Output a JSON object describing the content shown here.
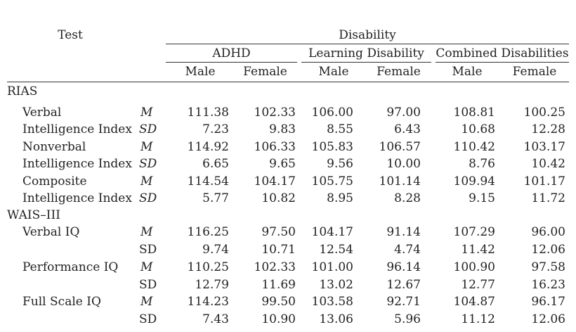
{
  "header": {
    "test_label": "Test",
    "disability_label": "Disability",
    "groups": [
      "ADHD",
      "Learning Disability",
      "Combined Disabilities"
    ],
    "sub": [
      "Male",
      "Female",
      "Male",
      "Female",
      "Male",
      "Female"
    ]
  },
  "sections": [
    {
      "title": "RIAS",
      "rows": [
        {
          "label": "Verbal",
          "stat": "M",
          "values": [
            "111.38",
            "102.33",
            "106.00",
            "97.00",
            "108.81",
            "100.25"
          ]
        },
        {
          "label": "Intelligence Index",
          "stat": "SD",
          "values": [
            "7.23",
            "9.83",
            "8.55",
            "6.43",
            "10.68",
            "12.28"
          ]
        },
        {
          "label": "Nonverbal",
          "stat": "M",
          "values": [
            "114.92",
            "106.33",
            "105.83",
            "106.57",
            "110.42",
            "103.17"
          ]
        },
        {
          "label": "Intelligence Index",
          "stat": "SD",
          "values": [
            "6.65",
            "9.65",
            "9.56",
            "10.00",
            "8.76",
            "10.42"
          ]
        },
        {
          "label": "Composite",
          "stat": "M",
          "values": [
            "114.54",
            "104.17",
            "105.75",
            "101.14",
            "109.94",
            "101.17"
          ]
        },
        {
          "label": "Intelligence Index",
          "stat": "SD",
          "values": [
            "5.77",
            "10.82",
            "8.95",
            "8.28",
            "9.15",
            "11.72"
          ]
        }
      ]
    },
    {
      "title": "WAIS–III",
      "rows": [
        {
          "label": "Verbal IQ",
          "stat": "M",
          "values": [
            "116.25",
            "97.50",
            "104.17",
            "91.14",
            "107.29",
            "96.00"
          ]
        },
        {
          "label": "",
          "stat": "SD",
          "values": [
            "9.74",
            "10.71",
            "12.54",
            "4.74",
            "11.42",
            "12.06"
          ]
        },
        {
          "label": "Performance IQ",
          "stat": "M",
          "values": [
            "110.25",
            "102.33",
            "101.00",
            "96.14",
            "100.90",
            "97.58"
          ]
        },
        {
          "label": "",
          "stat": "SD",
          "values": [
            "12.79",
            "11.69",
            "13.02",
            "12.67",
            "12.77",
            "16.23"
          ]
        },
        {
          "label": "Full Scale IQ",
          "stat": "M",
          "values": [
            "114.23",
            "99.50",
            "103.58",
            "92.71",
            "104.87",
            "96.17"
          ]
        },
        {
          "label": "",
          "stat": "SD",
          "values": [
            "7.43",
            "10.90",
            "13.06",
            "5.96",
            "11.12",
            "12.06"
          ]
        }
      ]
    }
  ]
}
